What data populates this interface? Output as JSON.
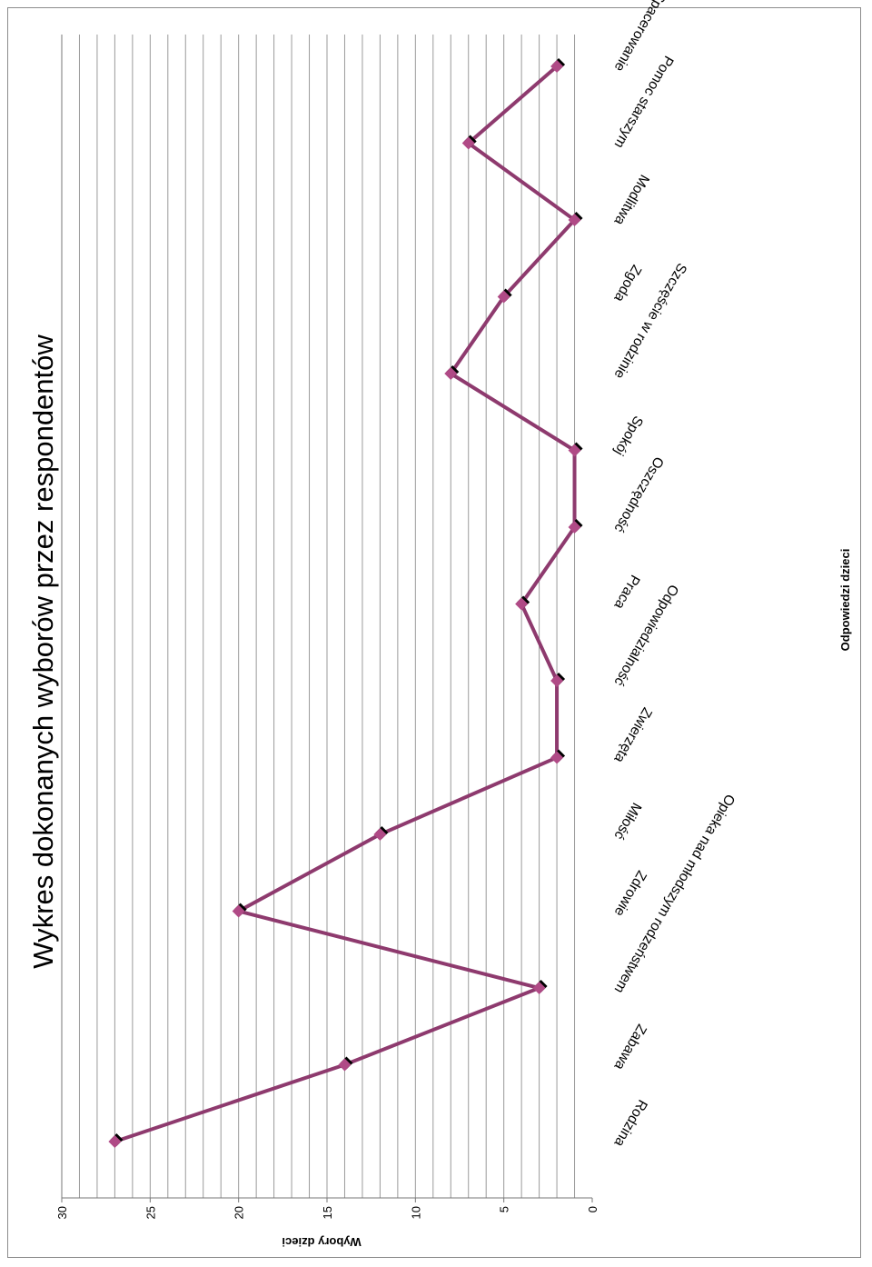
{
  "chart_data": {
    "type": "line",
    "title": "Wykres dokonanych wyborów przez respondentów",
    "xlabel": "Odpowiedzi dzieci",
    "ylabel": "Wybory dzieci",
    "categories": [
      "Rodzina",
      "Zabawa",
      "Opieka nad młodszym rodzeństwem",
      "Zdrowie",
      "Miłość",
      "Zwierzęta",
      "Odpowiedzialność",
      "Praca",
      "Oszczędność",
      "Spokój",
      "Szczęście w rodzinie",
      "Zgoda",
      "Modlitwa",
      "Pomoc starszym",
      "Spacerowanie"
    ],
    "series": [
      {
        "values": [
          27,
          14,
          3,
          20,
          12,
          2,
          2,
          4,
          1,
          1,
          8,
          5,
          1,
          7,
          2
        ]
      }
    ],
    "ylim": [
      0,
      30
    ],
    "yticks": [
      0,
      5,
      10,
      15,
      20,
      25,
      30
    ],
    "grid": true,
    "orientation": "rotated 90° clockwise",
    "colors": {
      "line": "#8e3a6e",
      "marker": "#b04a86",
      "marker_shadow": "#000000",
      "grid": "#9a9a9a",
      "axis": "#777777"
    }
  }
}
